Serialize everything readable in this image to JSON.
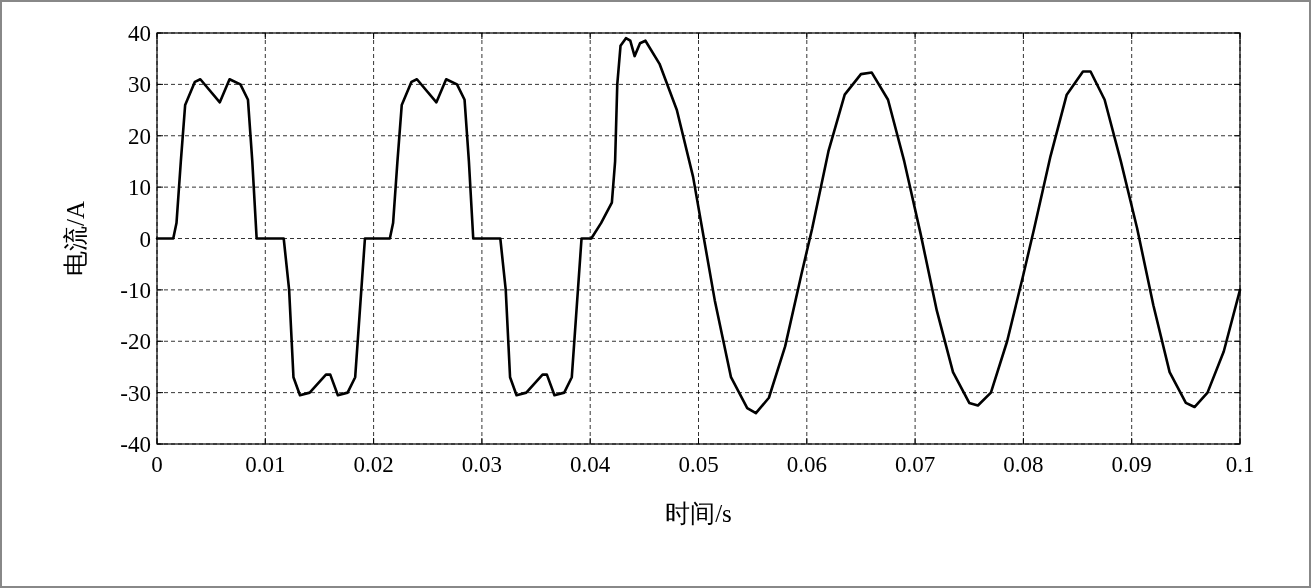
{
  "chart_data": {
    "type": "line",
    "xlabel": "时间/s",
    "ylabel": "电流/A",
    "xlim": [
      0,
      0.1
    ],
    "ylim": [
      -40,
      40
    ],
    "xticks": [
      0,
      0.01,
      0.02,
      0.03,
      0.04,
      0.05,
      0.06,
      0.07,
      0.08,
      0.09,
      0.1
    ],
    "yticks": [
      -40,
      -30,
      -20,
      -10,
      0,
      10,
      20,
      30,
      40
    ],
    "grid": true,
    "marker": "none",
    "line_style": "solid",
    "series": [
      {
        "color": "#000000",
        "x": [
          0,
          0.0015,
          0.0018,
          0.0022,
          0.0026,
          0.0035,
          0.004,
          0.0058,
          0.0067,
          0.0077,
          0.0084,
          0.0088,
          0.0092,
          0.0117,
          0.0122,
          0.0126,
          0.0132,
          0.0141,
          0.0156,
          0.016,
          0.0167,
          0.0176,
          0.0183,
          0.0187,
          0.0192,
          0.0215,
          0.0218,
          0.0222,
          0.0226,
          0.0235,
          0.024,
          0.0258,
          0.0267,
          0.0277,
          0.0284,
          0.0288,
          0.0292,
          0.0317,
          0.0322,
          0.0326,
          0.0332,
          0.0341,
          0.0356,
          0.036,
          0.0367,
          0.0376,
          0.0383,
          0.0387,
          0.0392,
          0.0401,
          0.041,
          0.042,
          0.0423,
          0.0425,
          0.0428,
          0.0433,
          0.0437,
          0.0441,
          0.0446,
          0.0451,
          0.0464,
          0.048,
          0.0495,
          0.0505,
          0.0515,
          0.053,
          0.0545,
          0.0553,
          0.0565,
          0.058,
          0.0595,
          0.0605,
          0.062,
          0.0635,
          0.065,
          0.066,
          0.0675,
          0.069,
          0.0705,
          0.072,
          0.0735,
          0.075,
          0.0758,
          0.077,
          0.0785,
          0.08,
          0.081,
          0.0825,
          0.084,
          0.0855,
          0.0862,
          0.0875,
          0.089,
          0.0905,
          0.092,
          0.0935,
          0.095,
          0.0958,
          0.097,
          0.0985,
          0.1
        ],
        "values": [
          0,
          0,
          3,
          15,
          26,
          30.5,
          31,
          26.5,
          31,
          30,
          27,
          15,
          0,
          0,
          -10,
          -27,
          -30.5,
          -30,
          -26.5,
          -26.5,
          -30.5,
          -30,
          -27,
          -15,
          0,
          0,
          3,
          15,
          26,
          30.5,
          31,
          26.5,
          31,
          30,
          27,
          15,
          0,
          0,
          -10,
          -27,
          -30.5,
          -30,
          -26.5,
          -26.5,
          -30.5,
          -30,
          -27,
          -15,
          0,
          0,
          3,
          7,
          15,
          30,
          37.5,
          39,
          38.5,
          35.5,
          38,
          38.5,
          34,
          25,
          12,
          0,
          -12,
          -27,
          -33,
          -34,
          -31,
          -21,
          -7,
          2,
          17,
          28,
          32,
          32.3,
          27,
          15,
          1,
          -14,
          -26,
          -32,
          -32.5,
          -30,
          -20,
          -7,
          2,
          16,
          28,
          32.5,
          32.5,
          27,
          15,
          2,
          -13,
          -26,
          -32,
          -32.8,
          -30,
          -22,
          -10
        ]
      }
    ]
  }
}
